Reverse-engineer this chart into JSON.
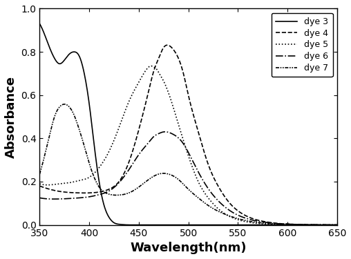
{
  "title": "",
  "xlabel": "Wavelength(nm)",
  "ylabel": "Absorbance",
  "xlim": [
    350,
    650
  ],
  "ylim": [
    0.0,
    1.0
  ],
  "xticks": [
    350,
    400,
    450,
    500,
    550,
    600,
    650
  ],
  "yticks": [
    0.0,
    0.2,
    0.4,
    0.6,
    0.8,
    1.0
  ],
  "series": [
    {
      "label": "dye 3",
      "linestyle": "solid",
      "color": "#000000",
      "linewidth": 1.2,
      "x": [
        350,
        355,
        360,
        365,
        370,
        375,
        380,
        385,
        390,
        395,
        400,
        405,
        410,
        415,
        420,
        425,
        430,
        435,
        440,
        445,
        450,
        500,
        550,
        600,
        650
      ],
      "y": [
        0.93,
        0.88,
        0.82,
        0.77,
        0.745,
        0.762,
        0.79,
        0.8,
        0.78,
        0.7,
        0.56,
        0.37,
        0.2,
        0.09,
        0.035,
        0.01,
        0.003,
        0.001,
        0.0,
        0.0,
        0.0,
        0.0,
        0.0,
        0.0,
        0.0
      ]
    },
    {
      "label": "dye 4",
      "linestyle": "dashed",
      "color": "#000000",
      "linewidth": 1.2,
      "x": [
        350,
        360,
        370,
        380,
        390,
        400,
        410,
        420,
        430,
        440,
        450,
        460,
        465,
        470,
        475,
        480,
        485,
        490,
        495,
        500,
        510,
        520,
        530,
        540,
        550,
        560,
        570,
        580,
        590,
        600,
        610,
        620,
        630,
        640,
        650
      ],
      "y": [
        0.18,
        0.165,
        0.155,
        0.15,
        0.148,
        0.148,
        0.152,
        0.165,
        0.2,
        0.29,
        0.44,
        0.62,
        0.71,
        0.77,
        0.82,
        0.83,
        0.81,
        0.77,
        0.7,
        0.6,
        0.43,
        0.28,
        0.18,
        0.11,
        0.065,
        0.038,
        0.022,
        0.013,
        0.007,
        0.004,
        0.002,
        0.001,
        0.0,
        0.0,
        0.0
      ]
    },
    {
      "label": "dye 5",
      "linestyle": "dotted",
      "color": "#000000",
      "linewidth": 1.2,
      "x": [
        350,
        360,
        370,
        380,
        390,
        400,
        410,
        420,
        430,
        440,
        450,
        455,
        460,
        462,
        465,
        468,
        470,
        475,
        480,
        490,
        500,
        510,
        520,
        530,
        540,
        550,
        560,
        570,
        580,
        590,
        600,
        620,
        640,
        650
      ],
      "y": [
        0.19,
        0.185,
        0.19,
        0.195,
        0.205,
        0.22,
        0.265,
        0.34,
        0.45,
        0.57,
        0.66,
        0.7,
        0.73,
        0.735,
        0.73,
        0.72,
        0.705,
        0.665,
        0.61,
        0.465,
        0.32,
        0.2,
        0.125,
        0.075,
        0.043,
        0.024,
        0.013,
        0.007,
        0.004,
        0.002,
        0.001,
        0.0,
        0.0,
        0.0
      ]
    },
    {
      "label": "dye 6",
      "linestyle": "dashdot",
      "color": "#000000",
      "linewidth": 1.2,
      "x": [
        350,
        360,
        370,
        380,
        390,
        400,
        410,
        420,
        430,
        440,
        450,
        460,
        465,
        470,
        475,
        480,
        485,
        490,
        495,
        500,
        510,
        520,
        530,
        540,
        550,
        560,
        570,
        580,
        590,
        600,
        610,
        620,
        630,
        640,
        650
      ],
      "y": [
        0.125,
        0.12,
        0.12,
        0.122,
        0.125,
        0.13,
        0.14,
        0.157,
        0.195,
        0.255,
        0.325,
        0.382,
        0.408,
        0.422,
        0.43,
        0.428,
        0.418,
        0.402,
        0.375,
        0.335,
        0.245,
        0.168,
        0.112,
        0.072,
        0.045,
        0.028,
        0.017,
        0.011,
        0.006,
        0.004,
        0.002,
        0.001,
        0.001,
        0.0,
        0.0
      ]
    },
    {
      "label": "dye 7",
      "linestyle": "dashdotdotted",
      "color": "#000000",
      "linewidth": 1.2,
      "x": [
        350,
        355,
        360,
        365,
        370,
        375,
        380,
        385,
        390,
        395,
        400,
        405,
        410,
        415,
        420,
        425,
        430,
        440,
        450,
        460,
        470,
        480,
        490,
        500,
        510,
        520,
        540,
        560,
        580,
        600,
        620,
        640,
        650
      ],
      "y": [
        0.235,
        0.32,
        0.415,
        0.5,
        0.545,
        0.558,
        0.545,
        0.505,
        0.44,
        0.365,
        0.285,
        0.22,
        0.175,
        0.152,
        0.142,
        0.138,
        0.138,
        0.148,
        0.175,
        0.21,
        0.235,
        0.235,
        0.21,
        0.165,
        0.125,
        0.09,
        0.044,
        0.018,
        0.007,
        0.003,
        0.001,
        0.0,
        0.0
      ]
    }
  ],
  "legend_loc": "upper right",
  "legend_fontsize": 9,
  "axis_linewidth": 1.0,
  "tick_labelsize": 10,
  "xlabel_fontsize": 13,
  "ylabel_fontsize": 13
}
